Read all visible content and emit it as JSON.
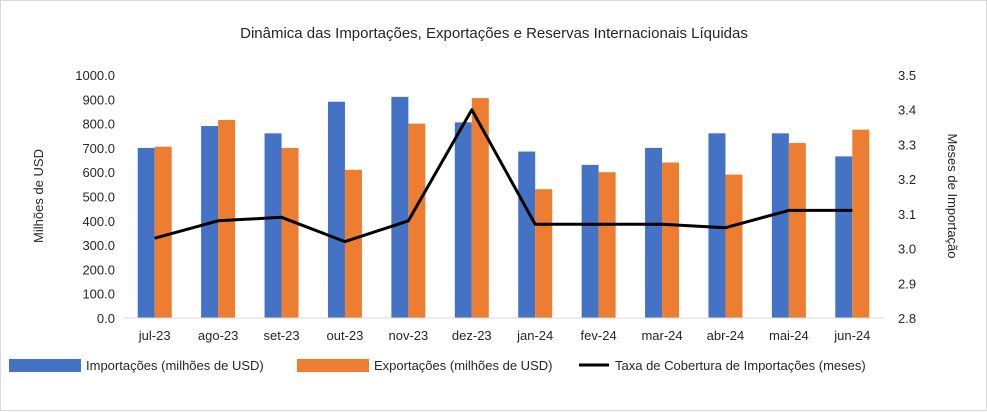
{
  "chart_data": {
    "type": "bar",
    "title": "Dinâmica das Importações, Exportações e Reservas Internacionais Líquidas",
    "xlabel": "",
    "ylabel": "Milhões de USD",
    "y2label": "Meses de Importação",
    "ylim": [
      0,
      1000
    ],
    "y2lim": [
      2.8,
      3.5
    ],
    "yticks": [
      "0.0",
      "100.0",
      "200.0",
      "300.0",
      "400.0",
      "500.0",
      "600.0",
      "700.0",
      "800.0",
      "900.0",
      "1000.0"
    ],
    "y2ticks": [
      "2.8",
      "2.9",
      "3.0",
      "3.1",
      "3.2",
      "3.3",
      "3.4",
      "3.5"
    ],
    "categories": [
      "jul-23",
      "ago-23",
      "set-23",
      "out-23",
      "nov-23",
      "dez-23",
      "jan-24",
      "fev-24",
      "mar-24",
      "abr-24",
      "mai-24",
      "jun-24"
    ],
    "series": [
      {
        "name": "Importações (milhões de USD)",
        "type": "bar",
        "axis": "left",
        "color": "#4472c4",
        "values": [
          700,
          790,
          760,
          890,
          910,
          805,
          685,
          630,
          700,
          760,
          760,
          665
        ]
      },
      {
        "name": "Exportações (milhões de USD)",
        "type": "bar",
        "axis": "left",
        "color": "#ed7d31",
        "values": [
          705,
          815,
          700,
          610,
          800,
          905,
          530,
          600,
          640,
          590,
          720,
          775
        ]
      },
      {
        "name": "Taxa de Cobertura de Importações (meses)",
        "type": "line",
        "axis": "right",
        "color": "#000000",
        "values": [
          3.03,
          3.08,
          3.09,
          3.02,
          3.08,
          3.4,
          3.07,
          3.07,
          3.07,
          3.06,
          3.11,
          3.11
        ]
      }
    ],
    "grid": false,
    "legend": "bottom"
  }
}
